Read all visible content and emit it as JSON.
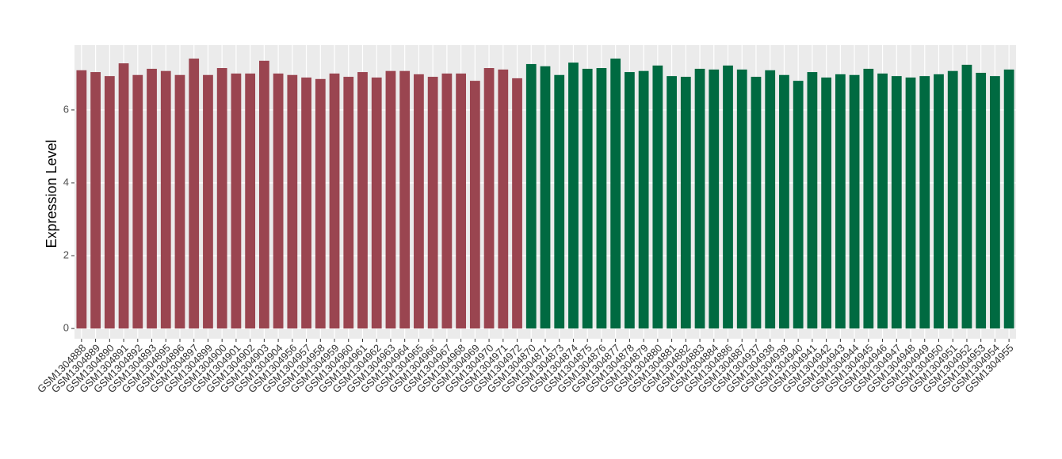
{
  "chart_data": {
    "type": "bar",
    "y_label": "Expression Level",
    "categories": [
      "GSM1304888",
      "GSM1304889",
      "GSM1304890",
      "GSM1304891",
      "GSM1304892",
      "GSM1304893",
      "GSM1304895",
      "GSM1304896",
      "GSM1304897",
      "GSM1304899",
      "GSM1304900",
      "GSM1304901",
      "GSM1304902",
      "GSM1304903",
      "GSM1304904",
      "GSM1304956",
      "GSM1304957",
      "GSM1304958",
      "GSM1304959",
      "GSM1304960",
      "GSM1304961",
      "GSM1304962",
      "GSM1304963",
      "GSM1304964",
      "GSM1304965",
      "GSM1304966",
      "GSM1304967",
      "GSM1304968",
      "GSM1304969",
      "GSM1304970",
      "GSM1304971",
      "GSM1304972",
      "GSM1304870",
      "GSM1304871",
      "GSM1304873",
      "GSM1304874",
      "GSM1304875",
      "GSM1304876",
      "GSM1304877",
      "GSM1304878",
      "GSM1304879",
      "GSM1304880",
      "GSM1304881",
      "GSM1304882",
      "GSM1304883",
      "GSM1304884",
      "GSM1304886",
      "GSM1304887",
      "GSM1304937",
      "GSM1304938",
      "GSM1304939",
      "GSM1304940",
      "GSM1304941",
      "GSM1304942",
      "GSM1304943",
      "GSM1304944",
      "GSM1304945",
      "GSM1304946",
      "GSM1304947",
      "GSM1304948",
      "GSM1304949",
      "GSM1304950",
      "GSM1304951",
      "GSM1304952",
      "GSM1304953",
      "GSM1304954",
      "GSM1304955"
    ],
    "values": [
      7.09,
      7.04,
      6.93,
      7.28,
      6.96,
      7.13,
      7.07,
      6.96,
      7.41,
      6.96,
      7.15,
      7.0,
      7.0,
      7.35,
      7.0,
      6.96,
      6.89,
      6.85,
      7.0,
      6.91,
      7.04,
      6.89,
      7.07,
      7.07,
      6.98,
      6.91,
      7.0,
      7.0,
      6.8,
      7.15,
      7.11,
      6.87,
      7.26,
      7.2,
      6.96,
      7.3,
      7.13,
      7.15,
      7.41,
      7.04,
      7.07,
      7.22,
      6.93,
      6.91,
      7.13,
      7.11,
      7.22,
      7.11,
      6.91,
      7.09,
      6.96,
      6.8,
      7.04,
      6.89,
      6.98,
      6.96,
      7.13,
      7.0,
      6.93,
      6.89,
      6.93,
      6.98,
      7.07,
      7.24,
      7.02,
      6.93,
      7.11
    ],
    "colors": [
      "#9a4550",
      "#9a4550",
      "#9a4550",
      "#9a4550",
      "#9a4550",
      "#9a4550",
      "#9a4550",
      "#9a4550",
      "#9a4550",
      "#9a4550",
      "#9a4550",
      "#9a4550",
      "#9a4550",
      "#9a4550",
      "#9a4550",
      "#9a4550",
      "#9a4550",
      "#9a4550",
      "#9a4550",
      "#9a4550",
      "#9a4550",
      "#9a4550",
      "#9a4550",
      "#9a4550",
      "#9a4550",
      "#9a4550",
      "#9a4550",
      "#9a4550",
      "#9a4550",
      "#9a4550",
      "#9a4550",
      "#9a4550",
      "#006a41",
      "#006a41",
      "#006a41",
      "#006a41",
      "#006a41",
      "#006a41",
      "#006a41",
      "#006a41",
      "#006a41",
      "#006a41",
      "#006a41",
      "#006a41",
      "#006a41",
      "#006a41",
      "#006a41",
      "#006a41",
      "#006a41",
      "#006a41",
      "#006a41",
      "#006a41",
      "#006a41",
      "#006a41",
      "#006a41",
      "#006a41",
      "#006a41",
      "#006a41",
      "#006a41",
      "#006a41",
      "#006a41",
      "#006a41",
      "#006a41",
      "#006a41",
      "#006a41",
      "#006a41",
      "#006a41"
    ],
    "ylim": [
      -0.28,
      7.78
    ],
    "yticks": [
      0,
      2,
      4,
      6
    ],
    "grid": true
  }
}
